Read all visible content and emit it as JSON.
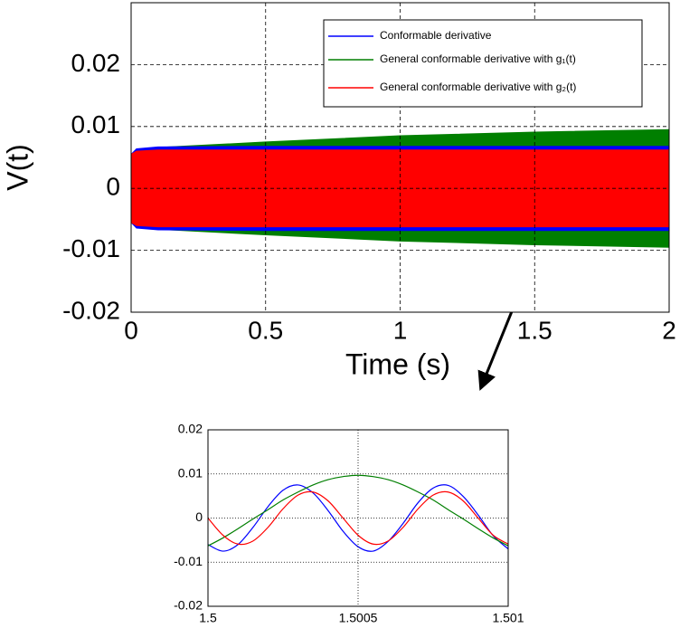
{
  "chart_data": [
    {
      "type": "area",
      "x_label": "Time (s)",
      "y_label": "V(t)",
      "x": [
        0,
        0.02,
        0.1,
        0.5,
        1,
        1.5,
        2
      ],
      "series": [
        {
          "name": "Conformable derivative",
          "color": "#0000ff",
          "values": [
            0.0055,
            0.0064,
            0.0067,
            0.0068,
            0.0068,
            0.0068,
            0.0068
          ]
        },
        {
          "name": "General conformable derivative with g₁(t)",
          "color": "#007f00",
          "values": [
            0.0055,
            0.0062,
            0.0066,
            0.0075,
            0.0085,
            0.0091,
            0.0095
          ]
        },
        {
          "name": "General conformable derivative with g₂(t)",
          "color": "#ff0000",
          "values": [
            0.0055,
            0.006,
            0.0062,
            0.0062,
            0.0062,
            0.0062,
            0.0062
          ]
        }
      ],
      "xlim": [
        0,
        2
      ],
      "xticks": [
        0,
        0.5,
        1,
        1.5,
        2
      ],
      "ylim": [
        -0.02,
        0.03
      ],
      "yticks": [
        -0.02,
        -0.01,
        0,
        0.01,
        0.02
      ],
      "grid": true,
      "legend": "upper right"
    },
    {
      "type": "line",
      "x": [
        1.5,
        1.50005,
        1.5001,
        1.50015,
        1.5002,
        1.50025,
        1.5003,
        1.50035,
        1.5004,
        1.50045,
        1.5005,
        1.50055,
        1.5006,
        1.50065,
        1.5007,
        1.50075,
        1.5008,
        1.50085,
        1.5009,
        1.50095,
        1.501
      ],
      "series": [
        {
          "color": "#0000ff",
          "values": [
            -0.006,
            -0.0075,
            -0.006,
            -0.0021,
            0.0026,
            0.0063,
            0.0075,
            0.0057,
            0.0017,
            -0.003,
            -0.0065,
            -0.0075,
            -0.0053,
            -0.0012,
            0.0035,
            0.0068,
            0.0074,
            0.0049,
            0.0007,
            -0.004,
            -0.007
          ]
        },
        {
          "color": "#007f00",
          "values": [
            -0.0063,
            -0.0045,
            -0.0024,
            -0.0002,
            0.0019,
            0.0041,
            0.0059,
            0.0075,
            0.0087,
            0.0094,
            0.0097,
            0.0094,
            0.0087,
            0.0075,
            0.0059,
            0.0041,
            0.0019,
            -0.0002,
            -0.0024,
            -0.0045,
            -0.0063
          ]
        },
        {
          "color": "#ff0000",
          "values": [
            0,
            -0.0039,
            -0.0059,
            -0.0052,
            -0.0021,
            0.0021,
            0.0052,
            0.0059,
            0.0039,
            0,
            -0.0039,
            -0.0059,
            -0.0052,
            -0.0021,
            0.0021,
            0.0052,
            0.0059,
            0.0039,
            0,
            -0.0039,
            -0.0059
          ]
        }
      ],
      "xlim": [
        1.5,
        1.501
      ],
      "xticks": [
        1.5,
        1.5005,
        1.501
      ],
      "ylim": [
        -0.02,
        0.02
      ],
      "yticks": [
        -0.02,
        -0.01,
        0,
        0.01,
        0.02
      ],
      "grid": true
    }
  ]
}
